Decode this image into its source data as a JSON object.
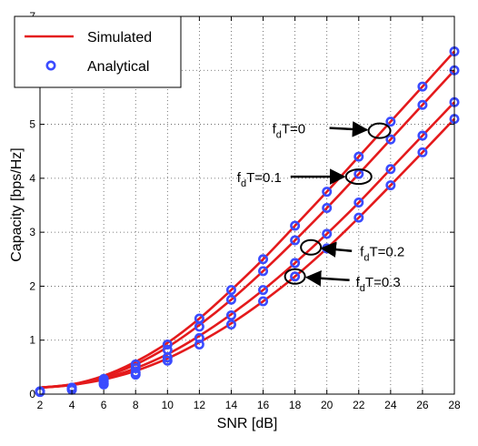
{
  "chart_data": {
    "type": "line",
    "xlabel": "SNR [dB]",
    "ylabel": "Capacity [bps/Hz]",
    "xlim": [
      2,
      28
    ],
    "ylim": [
      0,
      7
    ],
    "x_ticks": [
      2,
      4,
      6,
      8,
      10,
      12,
      14,
      16,
      18,
      20,
      22,
      24,
      26,
      28
    ],
    "y_ticks": [
      0,
      1,
      2,
      3,
      4,
      5,
      6,
      7
    ],
    "grid": true,
    "grid_style": "dotted",
    "legend_position": "top-left",
    "legend": [
      {
        "label": "Simulated",
        "marker": "line",
        "color": "#e41a1c"
      },
      {
        "label": "Analytical",
        "marker": "circle",
        "color": "#3a4bff"
      }
    ],
    "x": [
      2,
      4,
      6,
      8,
      10,
      12,
      14,
      16,
      18,
      20,
      22,
      24,
      26,
      28
    ],
    "series": [
      {
        "annotation": "fdT=0",
        "simulated": [
          0.12,
          0.18,
          0.34,
          0.6,
          0.95,
          1.4,
          1.93,
          2.5,
          3.12,
          3.75,
          4.4,
          5.05,
          5.7,
          6.35
        ],
        "analytical": [
          0.05,
          0.12,
          0.28,
          0.55,
          0.92,
          1.4,
          1.93,
          2.5,
          3.12,
          3.75,
          4.4,
          5.05,
          5.7,
          6.35
        ]
      },
      {
        "annotation": "fdT=0.1",
        "simulated": [
          0.12,
          0.18,
          0.32,
          0.55,
          0.87,
          1.28,
          1.75,
          2.28,
          2.85,
          3.45,
          4.08,
          4.72,
          5.36,
          6.0
        ],
        "analytical": [
          0.05,
          0.1,
          0.24,
          0.48,
          0.82,
          1.25,
          1.75,
          2.28,
          2.85,
          3.45,
          4.08,
          4.72,
          5.36,
          6.0
        ]
      },
      {
        "annotation": "fdT=0.2",
        "simulated": [
          0.12,
          0.17,
          0.29,
          0.48,
          0.74,
          1.08,
          1.48,
          1.93,
          2.43,
          2.97,
          3.55,
          4.17,
          4.79,
          5.41
        ],
        "analytical": [
          0.04,
          0.09,
          0.2,
          0.4,
          0.68,
          1.04,
          1.46,
          1.93,
          2.43,
          2.97,
          3.55,
          4.17,
          4.79,
          5.41
        ]
      },
      {
        "annotation": "fdT=0.3",
        "simulated": [
          0.12,
          0.17,
          0.27,
          0.43,
          0.66,
          0.96,
          1.31,
          1.72,
          2.18,
          2.7,
          3.27,
          3.87,
          4.48,
          5.1
        ],
        "analytical": [
          0.04,
          0.08,
          0.18,
          0.36,
          0.62,
          0.92,
          1.29,
          1.72,
          2.18,
          2.7,
          3.27,
          3.87,
          4.48,
          5.1
        ]
      }
    ],
    "annotations": [
      {
        "sub": "d",
        "pre": "f",
        "post": "T=0",
        "x": 23.3,
        "y": 4.88
      },
      {
        "sub": "d",
        "pre": "f",
        "post": "T=0.1",
        "x": 22.0,
        "y": 4.03
      },
      {
        "sub": "d",
        "pre": "f",
        "post": "T=0.2",
        "x": 19.0,
        "y": 2.72
      },
      {
        "sub": "d",
        "pre": "f",
        "post": "T=0.3",
        "x": 18.0,
        "y": 2.18
      }
    ],
    "colors": {
      "simulated": "#e41a1c",
      "analytical": "#3a4bff"
    }
  }
}
